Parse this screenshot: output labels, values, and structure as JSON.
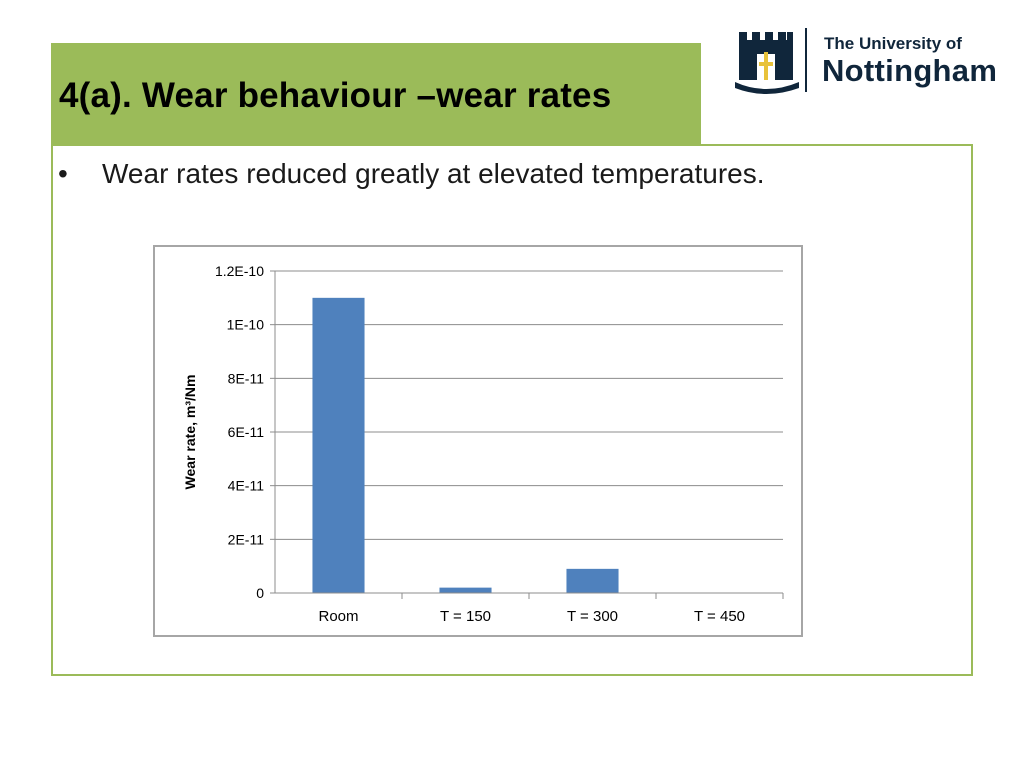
{
  "slide": {
    "title": "4(a). Wear behaviour –wear rates",
    "bullet": "Wear rates reduced greatly at elevated temperatures.",
    "bullet_symbol": "•"
  },
  "logo": {
    "line1": "The University of",
    "line2": "Nottingham",
    "color": "#10263b"
  },
  "colors": {
    "accent": "#9bbb59",
    "bar": "#4f81bd"
  },
  "chart_data": {
    "type": "bar",
    "categories": [
      "Room",
      "T = 150",
      "T = 300",
      "T = 450"
    ],
    "values": [
      1.1e-10,
      2e-12,
      9e-12,
      0
    ],
    "title": "",
    "xlabel": "",
    "ylabel": "Wear rate, m³/Nm",
    "ylim": [
      0,
      1.2e-10
    ],
    "yticks": [
      0,
      2e-11,
      4e-11,
      6e-11,
      8e-11,
      1e-10,
      1.2e-10
    ],
    "ytick_labels": [
      "0",
      "2E-11",
      "4E-11",
      "6E-11",
      "8E-11",
      "1E-10",
      "1.2E-10"
    ],
    "grid": true,
    "legend": "none"
  }
}
